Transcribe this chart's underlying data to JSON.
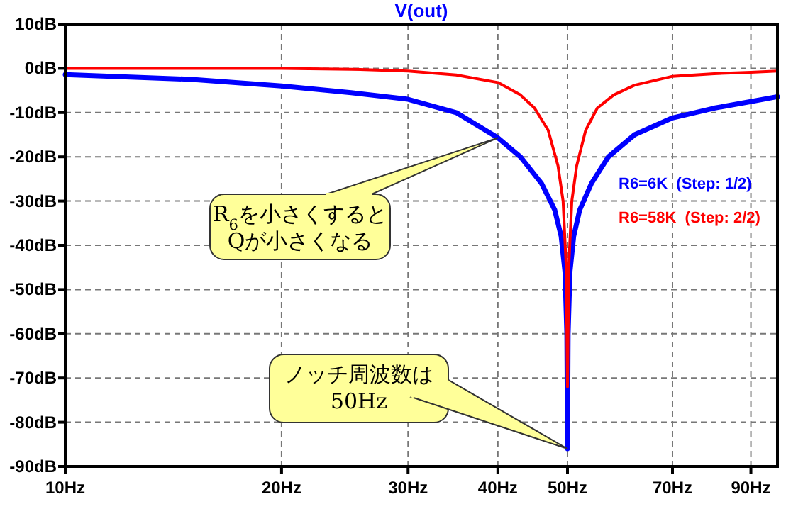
{
  "chart_data": {
    "type": "line",
    "title": "V(out)",
    "log": "x",
    "grid": true,
    "legend": "right",
    "line_style": "solid",
    "xlim": [
      10,
      98
    ],
    "ylim": [
      -90,
      10
    ],
    "xticks": [
      {
        "value": 10,
        "label": "10Hz"
      },
      {
        "value": 20,
        "label": "20Hz"
      },
      {
        "value": 30,
        "label": "30Hz"
      },
      {
        "value": 40,
        "label": "40Hz"
      },
      {
        "value": 50,
        "label": "50Hz"
      },
      {
        "value": 70,
        "label": "70Hz"
      },
      {
        "value": 90,
        "label": "90Hz"
      }
    ],
    "yticks": [
      {
        "value": 10,
        "label": "10dB"
      },
      {
        "value": 0,
        "label": "0dB"
      },
      {
        "value": -10,
        "label": "-10dB"
      },
      {
        "value": -20,
        "label": "-20dB"
      },
      {
        "value": -30,
        "label": "-30dB"
      },
      {
        "value": -40,
        "label": "-40dB"
      },
      {
        "value": -50,
        "label": "-50dB"
      },
      {
        "value": -60,
        "label": "-60dB"
      },
      {
        "value": -70,
        "label": "-70dB"
      },
      {
        "value": -80,
        "label": "-80dB"
      },
      {
        "value": -90,
        "label": "-90dB"
      }
    ],
    "series": [
      {
        "name": "R6=6K  (Step: 1/2)",
        "color": "#0000ff",
        "x": [
          10,
          15,
          20,
          25,
          30,
          35,
          40,
          43,
          46,
          48,
          49,
          49.6,
          49.9,
          50,
          50.1,
          50.4,
          51,
          52,
          54,
          57,
          62,
          70,
          80,
          90,
          98
        ],
        "values": [
          -1.4,
          -2.5,
          -4,
          -5.5,
          -7,
          -10,
          -15.7,
          -20,
          -26,
          -32,
          -38,
          -46,
          -60,
          -86,
          -60,
          -46,
          -38,
          -32,
          -26,
          -20,
          -15,
          -11.2,
          -9,
          -7.5,
          -6.4
        ]
      },
      {
        "name": "R6=58K  (Step: 2/2)",
        "color": "#ff0000",
        "x": [
          10,
          20,
          25,
          30,
          35,
          40,
          43,
          45,
          47,
          48.5,
          49.3,
          49.8,
          50,
          50.2,
          50.7,
          51.5,
          53,
          55,
          58,
          62,
          70,
          80,
          90,
          98
        ],
        "values": [
          0,
          0,
          -0.2,
          -0.6,
          -1.5,
          -3.2,
          -6,
          -9,
          -14,
          -22,
          -30,
          -45,
          -72,
          -45,
          -30,
          -22,
          -14,
          -9,
          -6,
          -3.8,
          -1.8,
          -1.2,
          -0.9,
          -0.6
        ]
      }
    ],
    "annotations": [
      {
        "text": "R$_{6}$を小さくすると\nQが小さくなる",
        "x": 40,
        "y": -15.7
      },
      {
        "text": "ノッチ周波数は\n50Hz",
        "x": 50,
        "y": -86
      }
    ]
  }
}
